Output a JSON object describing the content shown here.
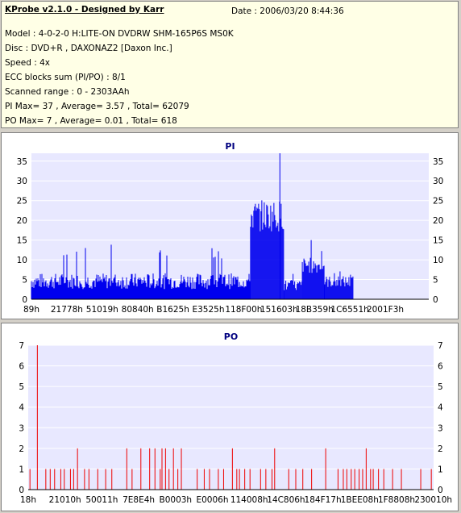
{
  "report": {
    "title": "KProbe v2.1.0 - Designed by Karr",
    "date": "Date : 2006/03/20 8:44:36",
    "model": "Model : 4-0-2-0 H:LITE-ON DVDRW SHM-165P6S MS0K",
    "disc": "Disc : DVD+R , DAXONAZ2 [Daxon Inc.]",
    "speed": "Speed : 4x",
    "ecc": "ECC blocks sum (PI/PO) : 8/1",
    "range": "Scanned range : 0 - 2303AAh",
    "pi_stats": "PI Max= 37 , Average= 3.57 , Total= 62079",
    "po_stats": "PO Max= 7 , Average= 0.01 , Total= 618"
  },
  "colors": {
    "pi_bar": "#0000ee",
    "po_bar": "#ee0000",
    "plot_bg": "#e8e8ff",
    "grid": "#ffffff",
    "title": "#000080"
  },
  "chart_data": [
    {
      "type": "bar",
      "title": "PI",
      "ylim": [
        0,
        37
      ],
      "yticks": [
        0,
        5,
        10,
        15,
        20,
        25,
        30,
        35
      ],
      "xlim": [
        0,
        2303
      ],
      "xtick_labels": [
        "89h",
        "21778h",
        "51019h",
        "80840h",
        "B1625h",
        "E3525h",
        "118F00h",
        "151603h",
        "18B359h",
        "1C6551h",
        "2001F3h"
      ],
      "grid": true,
      "series": [
        {
          "values": [
            {
              "x_range": [
                0,
                1270
              ],
              "baseline": 4,
              "jitter": 4,
              "spike_max": 14
            },
            {
              "x_range": [
                1270,
                1465
              ],
              "baseline": 20,
              "jitter": 8,
              "spike_max": 31
            },
            {
              "x_range": [
                1465,
                1570
              ],
              "baseline": 3,
              "jitter": 3,
              "spike_max": 8
            },
            {
              "x_range": [
                1570,
                1700
              ],
              "baseline": 8,
              "jitter": 4,
              "spike_max": 16
            },
            {
              "x_range": [
                1700,
                1865
              ],
              "baseline": 4,
              "jitter": 3,
              "spike_max": 8
            }
          ],
          "peak": {
            "x": 1440,
            "y": 37
          }
        }
      ]
    },
    {
      "type": "bar",
      "title": "PO",
      "ylim": [
        0,
        7
      ],
      "yticks": [
        0,
        1,
        2,
        3,
        4,
        5,
        6,
        7
      ],
      "xlim": [
        0,
        2303
      ],
      "xtick_labels": [
        "18h",
        "21010h",
        "50011h",
        "7E8E4h",
        "B0003h",
        "E0006h",
        "114008h",
        "14C806h",
        "184F17h",
        "1BEE08h",
        "1F8808h",
        "230010h"
      ],
      "grid": true,
      "series": [
        {
          "values": [
            {
              "x": 10,
              "y": 1
            },
            {
              "x": 52,
              "y": 7
            },
            {
              "x": 100,
              "y": 1
            },
            {
              "x": 125,
              "y": 1
            },
            {
              "x": 150,
              "y": 1
            },
            {
              "x": 185,
              "y": 1
            },
            {
              "x": 205,
              "y": 1
            },
            {
              "x": 240,
              "y": 1
            },
            {
              "x": 258,
              "y": 1
            },
            {
              "x": 280,
              "y": 2
            },
            {
              "x": 320,
              "y": 1
            },
            {
              "x": 345,
              "y": 1
            },
            {
              "x": 395,
              "y": 1
            },
            {
              "x": 440,
              "y": 1
            },
            {
              "x": 475,
              "y": 1
            },
            {
              "x": 560,
              "y": 2
            },
            {
              "x": 590,
              "y": 1
            },
            {
              "x": 640,
              "y": 2
            },
            {
              "x": 690,
              "y": 2
            },
            {
              "x": 720,
              "y": 2
            },
            {
              "x": 750,
              "y": 1
            },
            {
              "x": 760,
              "y": 2
            },
            {
              "x": 780,
              "y": 2
            },
            {
              "x": 800,
              "y": 1
            },
            {
              "x": 825,
              "y": 2
            },
            {
              "x": 850,
              "y": 1
            },
            {
              "x": 870,
              "y": 2
            },
            {
              "x": 960,
              "y": 1
            },
            {
              "x": 1000,
              "y": 1
            },
            {
              "x": 1030,
              "y": 1
            },
            {
              "x": 1080,
              "y": 1
            },
            {
              "x": 1110,
              "y": 1
            },
            {
              "x": 1160,
              "y": 2
            },
            {
              "x": 1185,
              "y": 1
            },
            {
              "x": 1200,
              "y": 1
            },
            {
              "x": 1230,
              "y": 1
            },
            {
              "x": 1260,
              "y": 1
            },
            {
              "x": 1320,
              "y": 1
            },
            {
              "x": 1350,
              "y": 1
            },
            {
              "x": 1385,
              "y": 1
            },
            {
              "x": 1400,
              "y": 2
            },
            {
              "x": 1480,
              "y": 1
            },
            {
              "x": 1520,
              "y": 1
            },
            {
              "x": 1560,
              "y": 1
            },
            {
              "x": 1610,
              "y": 1
            },
            {
              "x": 1690,
              "y": 2
            },
            {
              "x": 1760,
              "y": 1
            },
            {
              "x": 1790,
              "y": 1
            },
            {
              "x": 1810,
              "y": 1
            },
            {
              "x": 1835,
              "y": 1
            },
            {
              "x": 1855,
              "y": 1
            },
            {
              "x": 1880,
              "y": 1
            },
            {
              "x": 1900,
              "y": 1
            },
            {
              "x": 1920,
              "y": 2
            },
            {
              "x": 1945,
              "y": 1
            },
            {
              "x": 1960,
              "y": 1
            },
            {
              "x": 1990,
              "y": 1
            },
            {
              "x": 2020,
              "y": 1
            },
            {
              "x": 2070,
              "y": 1
            },
            {
              "x": 2120,
              "y": 1
            },
            {
              "x": 2230,
              "y": 1
            },
            {
              "x": 2290,
              "y": 1
            }
          ]
        }
      ]
    }
  ]
}
